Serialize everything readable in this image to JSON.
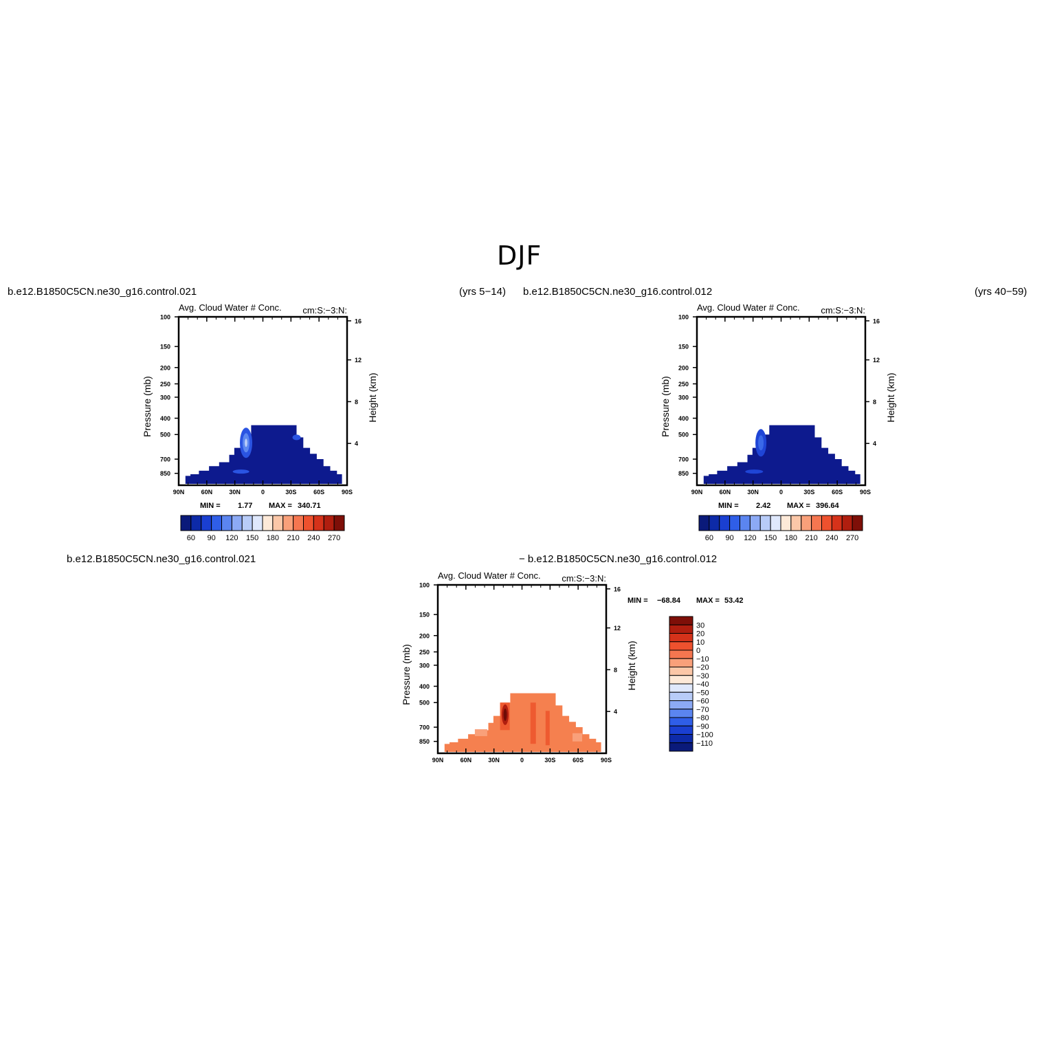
{
  "page": {
    "title": "DJF",
    "top_left_case": "b.e12.B1850C5CN.ne30_g16.control.021",
    "top_left_years": "(yrs 5−14)",
    "top_right_case": "b.e12.B1850C5CN.ne30_g16.control.012",
    "top_right_years": "(yrs 40−59)",
    "diff_case_a": "b.e12.B1850C5CN.ne30_g16.control.021",
    "diff_case_b": "− b.e12.B1850C5CN.ne30_g16.control.012"
  },
  "chart_data": [
    {
      "type": "heatmap",
      "panel": "control.021",
      "title": "Avg. Cloud Water # Conc.",
      "title_right": "cm:S:−3:N:",
      "xlabel": "",
      "ylabel": "Pressure (mb)",
      "ylabel_right": "Height (km)",
      "x_ticks": [
        "90N",
        "60N",
        "30N",
        "0",
        "30S",
        "60S",
        "90S"
      ],
      "y_ticks": [
        100,
        150,
        200,
        250,
        300,
        400,
        500,
        700,
        850
      ],
      "y_ticks_right": [
        4,
        8,
        12,
        16
      ],
      "ylim": [
        1000,
        100
      ],
      "min_label": "MIN =",
      "min_value": "1.77",
      "max_label": "MAX =",
      "max_value": "340.71",
      "colorbar_labels": [
        "60",
        "90",
        "120",
        "150",
        "180",
        "210",
        "240",
        "270"
      ],
      "colorbar_colors": [
        "#0a1a7a",
        "#0d2aa8",
        "#1a3fd1",
        "#2f5ee8",
        "#5b85f0",
        "#8caaf5",
        "#b8ccf8",
        "#dfe8fc",
        "#fde9d8",
        "#fbc7a8",
        "#f9a07a",
        "#f57650",
        "#ee512e",
        "#d5321a",
        "#b01e0f",
        "#7e0f08"
      ],
      "field_color": "#0d1a8e",
      "highlight_colors": [
        "#2a54e2",
        "#5d88f0",
        "#b7cbf8"
      ]
    },
    {
      "type": "heatmap",
      "panel": "control.012",
      "title": "Avg. Cloud Water # Conc.",
      "title_right": "cm:S:−3:N:",
      "xlabel": "",
      "ylabel": "Pressure (mb)",
      "ylabel_right": "Height (km)",
      "x_ticks": [
        "90N",
        "60N",
        "30N",
        "0",
        "30S",
        "60S",
        "90S"
      ],
      "y_ticks": [
        100,
        150,
        200,
        250,
        300,
        400,
        500,
        700,
        850
      ],
      "y_ticks_right": [
        4,
        8,
        12,
        16
      ],
      "ylim": [
        1000,
        100
      ],
      "min_label": "MIN =",
      "min_value": "2.42",
      "max_label": "MAX =",
      "max_value": "396.64",
      "colorbar_labels": [
        "60",
        "90",
        "120",
        "150",
        "180",
        "210",
        "240",
        "270"
      ],
      "colorbar_colors": [
        "#0a1a7a",
        "#0d2aa8",
        "#1a3fd1",
        "#2f5ee8",
        "#5b85f0",
        "#8caaf5",
        "#b8ccf8",
        "#dfe8fc",
        "#fde9d8",
        "#fbc7a8",
        "#f9a07a",
        "#f57650",
        "#ee512e",
        "#d5321a",
        "#b01e0f",
        "#7e0f08"
      ],
      "field_color": "#0d1a8e",
      "highlight_colors": [
        "#1f45d6",
        "#3a68e8"
      ]
    },
    {
      "type": "heatmap",
      "panel": "difference",
      "title": "Avg. Cloud Water # Conc.",
      "title_right": "cm:S:−3:N:",
      "xlabel": "",
      "ylabel": "Pressure (mb)",
      "ylabel_right": "Height (km)",
      "x_ticks": [
        "90N",
        "60N",
        "30N",
        "0",
        "30S",
        "60S",
        "90S"
      ],
      "y_ticks": [
        100,
        150,
        200,
        250,
        300,
        400,
        500,
        700,
        850
      ],
      "y_ticks_right": [
        4,
        8,
        12,
        16
      ],
      "ylim": [
        1000,
        100
      ],
      "min_label": "MIN =",
      "min_value": "−68.84",
      "max_label": "MAX =",
      "max_value": "53.42",
      "colorbar_labels": [
        "30",
        "20",
        "10",
        "0",
        "−10",
        "−20",
        "−30",
        "−40",
        "−50",
        "−60",
        "−70",
        "−80",
        "−90",
        "−100",
        "−110"
      ],
      "colorbar_colors": [
        "#7e0f08",
        "#b01e0f",
        "#d5321a",
        "#ee512e",
        "#f57650",
        "#f9a07a",
        "#fbc7a8",
        "#fde9d8",
        "#dfe8fc",
        "#b8ccf8",
        "#8caaf5",
        "#5b85f0",
        "#2f5ee8",
        "#1a3fd1",
        "#0d2aa8",
        "#0a1a7a"
      ],
      "field_color": "#f5804f",
      "highlight_colors": [
        "#ee5a30",
        "#b01e0f",
        "#6e0c06",
        "#f9a07a"
      ]
    }
  ]
}
